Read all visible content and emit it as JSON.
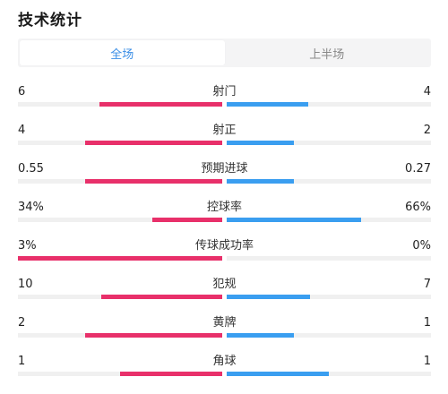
{
  "header": {
    "title": "技术统计"
  },
  "tabs": [
    {
      "label": "全场",
      "active": true
    },
    {
      "label": "上半场",
      "active": false
    }
  ],
  "colors": {
    "home": "#e8306a",
    "away": "#3a9ef0",
    "track": "#f0f0f0",
    "active_tab": "#3a8ee6"
  },
  "stats": [
    {
      "label": "射门",
      "home": "6",
      "away": "4",
      "home_share": 0.6,
      "away_share": 0.4
    },
    {
      "label": "射正",
      "home": "4",
      "away": "2",
      "home_share": 0.67,
      "away_share": 0.33
    },
    {
      "label": "预期进球",
      "home": "0.55",
      "away": "0.27",
      "home_share": 0.67,
      "away_share": 0.33
    },
    {
      "label": "控球率",
      "home": "34%",
      "away": "66%",
      "home_share": 0.34,
      "away_share": 0.66
    },
    {
      "label": "传球成功率",
      "home": "3%",
      "away": "0%",
      "home_share": 1.0,
      "away_share": 0.0
    },
    {
      "label": "犯规",
      "home": "10",
      "away": "7",
      "home_share": 0.59,
      "away_share": 0.41
    },
    {
      "label": "黄牌",
      "home": "2",
      "away": "1",
      "home_share": 0.67,
      "away_share": 0.33
    },
    {
      "label": "角球",
      "home": "1",
      "away": "1",
      "home_share": 0.5,
      "away_share": 0.5
    }
  ]
}
